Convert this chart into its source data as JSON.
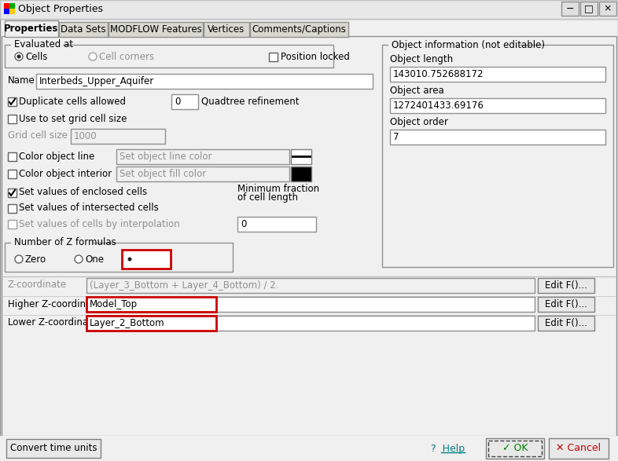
{
  "title": "Object Properties",
  "bg_color": "#f0f0f0",
  "white": "#ffffff",
  "tabs": [
    "Properties",
    "Data Sets",
    "MODFLOW Features",
    "Vertices",
    "Comments/Captions"
  ],
  "name_value": "Interbeds_Upper_Aquifer",
  "obj_length": "143010.752688172",
  "obj_area": "1272401433.69176",
  "obj_order": "7",
  "quadtree_value": "0",
  "grid_cell_size": "1000",
  "min_fraction_value": "0",
  "z_coord_value": "(Layer_3_Bottom + Layer_4_Bottom) / 2.",
  "higher_z": "Model_Top",
  "lower_z": "Layer_2_Bottom",
  "red_highlight": "#cc0000",
  "button_bg": "#e8e8e8",
  "tab_bg": "#d4d0c8",
  "gray_text": "#808080",
  "teal_help": "#008080",
  "green_ok": "#008000",
  "title_bar_bg": "#ffffff"
}
